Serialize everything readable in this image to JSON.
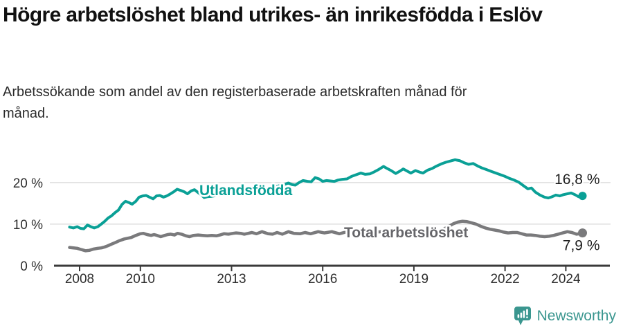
{
  "title": "Högre arbetslöshet bland utrikes- än inrikesfödda i Eslöv",
  "subtitle": "Arbetssökande som andel av den registerbaserade arbetskraften månad för månad.",
  "branding": {
    "name": "Newsworthy",
    "color": "#3a968f"
  },
  "colors": {
    "accent_teal": "#0aa096",
    "line_gray": "#7a7a7c",
    "label_gray": "#66666a",
    "axis": "#3a3a3a",
    "grid": "#d9d9d9",
    "tick_text": "#2e2e2e",
    "value_text": "#1c1c1c"
  },
  "chart_data": {
    "type": "line",
    "title": "Högre arbetslöshet bland utrikes- än inrikesfödda i Eslöv",
    "xlabel": "",
    "ylabel": "Arbetssökande som andel av den registerbaserade arbetskraften (%)",
    "x_axis": {
      "unit": "year",
      "range": [
        2007.55,
        2025.2
      ],
      "ticks": [
        2008,
        2010,
        2013,
        2016,
        2019,
        2022,
        2024
      ]
    },
    "y_axis": {
      "unit": "%",
      "range": [
        0,
        27
      ],
      "ticks": [
        {
          "value": 0,
          "label": "0 %"
        },
        {
          "value": 10,
          "label": "10 %"
        },
        {
          "value": 20,
          "label": "20 %"
        }
      ],
      "gridlines": [
        10,
        20
      ]
    },
    "legend_position": "inline-labels",
    "grid": "horizontal-only",
    "series": [
      {
        "name": "Utlandsfödda",
        "color": "#0aa096",
        "label_color": "#0aa096",
        "end_value": 16.8,
        "end_label": "16,8 %",
        "x": [
          2007.67,
          2007.8,
          2007.92,
          2008.03,
          2008.14,
          2008.26,
          2008.37,
          2008.48,
          2008.6,
          2008.71,
          2008.83,
          2008.94,
          2009.05,
          2009.17,
          2009.28,
          2009.4,
          2009.51,
          2009.62,
          2009.73,
          2009.85,
          2009.96,
          2010.08,
          2010.19,
          2010.3,
          2010.42,
          2010.53,
          2010.64,
          2010.76,
          2010.87,
          2010.99,
          2011.1,
          2011.21,
          2011.33,
          2011.44,
          2011.55,
          2011.67,
          2011.78,
          2011.9,
          2012.0,
          2012.1,
          2012.2,
          2012.35,
          2012.5,
          2012.65,
          2012.8,
          2012.95,
          2013.1,
          2013.25,
          2013.4,
          2013.55,
          2013.7,
          2013.85,
          2014.0,
          2014.15,
          2014.3,
          2014.45,
          2014.6,
          2014.75,
          2014.87,
          2015.0,
          2015.1,
          2015.22,
          2015.35,
          2015.5,
          2015.62,
          2015.75,
          2015.88,
          2016.0,
          2016.12,
          2016.25,
          2016.38,
          2016.5,
          2016.65,
          2016.8,
          2016.95,
          2017.1,
          2017.25,
          2017.4,
          2017.55,
          2017.7,
          2017.85,
          2018.0,
          2018.12,
          2018.25,
          2018.4,
          2018.55,
          2018.65,
          2018.8,
          2018.9,
          2019.05,
          2019.2,
          2019.3,
          2019.45,
          2019.6,
          2019.75,
          2019.9,
          2020.05,
          2020.2,
          2020.35,
          2020.5,
          2020.65,
          2020.8,
          2020.95,
          2021.1,
          2021.25,
          2021.4,
          2021.55,
          2021.7,
          2021.85,
          2022.0,
          2022.15,
          2022.3,
          2022.45,
          2022.6,
          2022.75,
          2022.87,
          2023.0,
          2023.15,
          2023.3,
          2023.42,
          2023.55,
          2023.67,
          2023.8,
          2023.92,
          2024.05,
          2024.17,
          2024.3,
          2024.42,
          2024.55
        ],
        "values": [
          9.3,
          9.1,
          9.4,
          9.0,
          8.9,
          9.8,
          9.4,
          9.1,
          9.4,
          10.0,
          10.7,
          11.5,
          12.0,
          12.8,
          13.4,
          14.8,
          15.5,
          15.2,
          14.8,
          15.5,
          16.5,
          16.8,
          16.9,
          16.5,
          16.1,
          16.8,
          16.9,
          16.5,
          16.8,
          17.3,
          17.8,
          18.4,
          18.1,
          17.8,
          17.3,
          18.0,
          18.3,
          17.6,
          17.1,
          16.4,
          16.6,
          16.7,
          16.9,
          17.0,
          17.2,
          17.4,
          17.3,
          17.5,
          17.7,
          17.9,
          18.0,
          18.2,
          18.4,
          18.6,
          18.8,
          19.0,
          19.3,
          19.6,
          19.9,
          19.5,
          19.4,
          20.0,
          20.5,
          20.3,
          20.2,
          21.2,
          20.9,
          20.3,
          20.5,
          20.4,
          20.3,
          20.6,
          20.8,
          20.9,
          21.5,
          21.9,
          22.3,
          22.0,
          22.1,
          22.6,
          23.2,
          23.9,
          23.4,
          22.9,
          22.2,
          22.8,
          23.3,
          22.7,
          22.3,
          22.9,
          22.5,
          22.3,
          23.0,
          23.4,
          24.0,
          24.5,
          24.9,
          25.2,
          25.5,
          25.3,
          24.8,
          24.4,
          24.6,
          24.0,
          23.5,
          23.1,
          22.7,
          22.3,
          21.9,
          21.5,
          21.0,
          20.6,
          20.1,
          19.3,
          18.5,
          18.7,
          17.7,
          17.0,
          16.5,
          16.3,
          16.6,
          17.0,
          16.8,
          17.1,
          17.3,
          17.5,
          17.1,
          16.6,
          16.8
        ]
      },
      {
        "name": "Total arbetslöshet",
        "color": "#7a7a7c",
        "label_color": "#66666a",
        "end_value": 7.9,
        "end_label": "7,9 %",
        "x": [
          2007.67,
          2007.8,
          2007.92,
          2008.05,
          2008.2,
          2008.32,
          2008.45,
          2008.6,
          2008.72,
          2008.82,
          2008.93,
          2009.05,
          2009.18,
          2009.3,
          2009.45,
          2009.57,
          2009.7,
          2009.85,
          2010.0,
          2010.1,
          2010.22,
          2010.35,
          2010.45,
          2010.55,
          2010.67,
          2010.8,
          2010.9,
          2011.0,
          2011.12,
          2011.22,
          2011.35,
          2011.5,
          2011.62,
          2011.75,
          2011.9,
          2012.05,
          2012.2,
          2012.35,
          2012.5,
          2012.62,
          2012.75,
          2012.9,
          2013.05,
          2013.15,
          2013.3,
          2013.42,
          2013.55,
          2013.67,
          2013.82,
          2014.0,
          2014.2,
          2014.35,
          2014.5,
          2014.67,
          2014.87,
          2015.05,
          2015.25,
          2015.42,
          2015.6,
          2015.85,
          2016.05,
          2016.3,
          2016.55,
          2016.8,
          2017.0,
          2017.25,
          2017.5,
          2017.75,
          2018.0,
          2018.25,
          2018.5,
          2018.75,
          2019.0,
          2019.25,
          2019.5,
          2019.7,
          2019.85,
          2020.0,
          2020.15,
          2020.3,
          2020.45,
          2020.6,
          2020.75,
          2020.9,
          2021.05,
          2021.2,
          2021.35,
          2021.5,
          2021.65,
          2021.8,
          2021.95,
          2022.1,
          2022.25,
          2022.4,
          2022.55,
          2022.7,
          2022.85,
          2023.0,
          2023.15,
          2023.3,
          2023.45,
          2023.6,
          2023.75,
          2023.9,
          2024.05,
          2024.2,
          2024.35,
          2024.45,
          2024.55
        ],
        "values": [
          4.4,
          4.3,
          4.2,
          3.9,
          3.6,
          3.7,
          4.0,
          4.2,
          4.3,
          4.5,
          4.8,
          5.2,
          5.6,
          6.0,
          6.4,
          6.6,
          6.8,
          7.3,
          7.7,
          7.8,
          7.5,
          7.3,
          7.5,
          7.3,
          7.0,
          7.3,
          7.5,
          7.6,
          7.4,
          7.8,
          7.6,
          7.2,
          7.0,
          7.3,
          7.4,
          7.3,
          7.2,
          7.3,
          7.2,
          7.4,
          7.7,
          7.6,
          7.8,
          7.9,
          7.8,
          7.6,
          7.8,
          8.0,
          7.7,
          8.2,
          7.7,
          7.6,
          8.0,
          7.6,
          8.2,
          7.8,
          7.7,
          8.0,
          7.7,
          8.2,
          7.9,
          8.2,
          7.7,
          8.2,
          8.2,
          8.3,
          8.2,
          8.1,
          8.2,
          8.0,
          7.9,
          7.8,
          7.9,
          8.0,
          8.1,
          8.3,
          8.5,
          8.9,
          9.5,
          10.1,
          10.5,
          10.7,
          10.6,
          10.3,
          10.0,
          9.5,
          9.1,
          8.8,
          8.6,
          8.4,
          8.1,
          7.9,
          8.0,
          8.0,
          7.7,
          7.4,
          7.4,
          7.3,
          7.1,
          7.0,
          7.1,
          7.3,
          7.6,
          7.9,
          8.2,
          8.0,
          7.6,
          7.7,
          7.9
        ]
      }
    ]
  }
}
